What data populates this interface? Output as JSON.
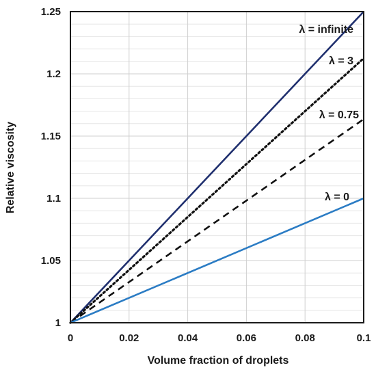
{
  "chart_data": {
    "type": "line",
    "xlabel": "Volume fraction of droplets",
    "ylabel": "Relative viscosity",
    "xlim": [
      0,
      0.1
    ],
    "ylim": [
      1,
      1.25
    ],
    "x_ticks": [
      "0",
      "0.02",
      "0.04",
      "0.06",
      "0.08",
      "0.1"
    ],
    "y_ticks": [
      "1",
      "1.05",
      "1.1",
      "1.15",
      "1.2",
      "1.25"
    ],
    "grid": "major and minor horizontal, major vertical",
    "series": [
      {
        "name": "λ = infinite",
        "x": [
          0,
          0.1
        ],
        "values": [
          1,
          1.25
        ],
        "color": "#1f2f6e",
        "style": "solid"
      },
      {
        "name": "λ = 3",
        "x": [
          0,
          0.1
        ],
        "values": [
          1,
          1.2125
        ],
        "color": "#111111",
        "style": "dotted"
      },
      {
        "name": "λ = 0.75",
        "x": [
          0,
          0.1
        ],
        "values": [
          1,
          1.1636
        ],
        "color": "#111111",
        "style": "dashed"
      },
      {
        "name": "λ = 0",
        "x": [
          0,
          0.1
        ],
        "values": [
          1,
          1.1
        ],
        "color": "#2b7cc4",
        "style": "solid"
      }
    ]
  }
}
